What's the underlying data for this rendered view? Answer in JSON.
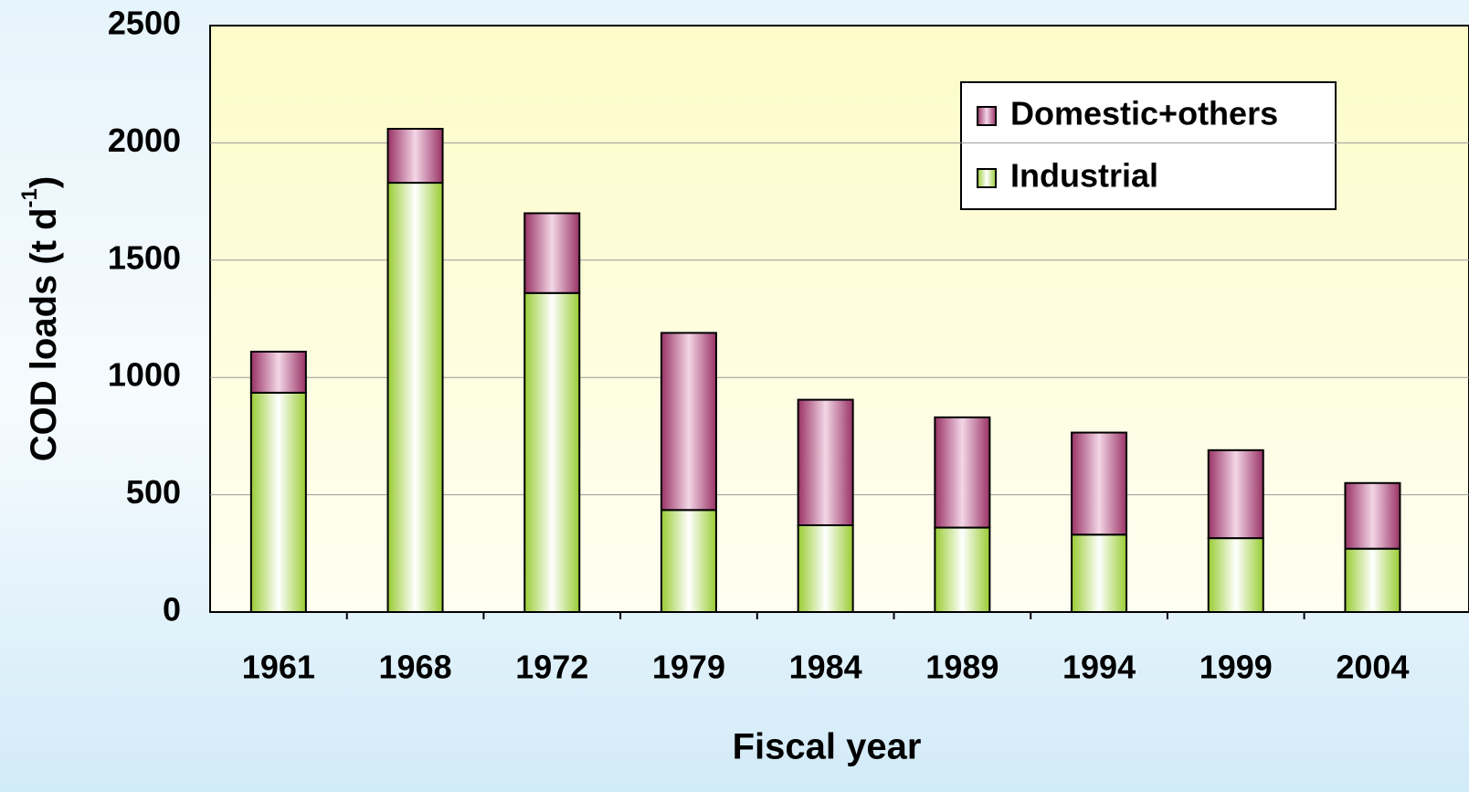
{
  "chart_data": {
    "type": "stacked-bar",
    "x_label": "Fiscal year",
    "y_label": {
      "text": "COD loads (t d",
      "superscript": "-1",
      "end": ")"
    },
    "categories": [
      "1961",
      "1968",
      "1972",
      "1979",
      "1984",
      "1989",
      "1994",
      "1999",
      "2004"
    ],
    "series": [
      {
        "name": "Industrial",
        "color": "#99cc33",
        "values": [
          935,
          1830,
          1360,
          435,
          370,
          360,
          330,
          315,
          270
        ]
      },
      {
        "name": "Domestic+others",
        "color": "#993366",
        "values": [
          175,
          230,
          340,
          755,
          535,
          470,
          435,
          375,
          280
        ]
      }
    ],
    "ylim": [
      0,
      2500
    ],
    "yticks": [
      0,
      500,
      1000,
      1500,
      2000,
      2500
    ],
    "grid": true
  }
}
